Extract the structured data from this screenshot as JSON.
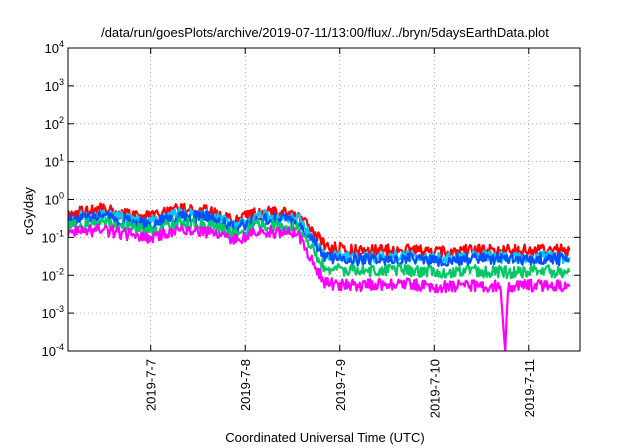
{
  "chart_data": {
    "type": "line",
    "title": "/data/run/goesPlots/archive/2019-07-11/13:00/flux/../bryn/5daysEarthData.plot",
    "xlabel": "Coordinated Universal Time (UTC)",
    "ylabel": "cGy/day",
    "yscale": "log",
    "ylim": [
      0.0001,
      10000
    ],
    "y_ticks": [
      {
        "value": 0.0001,
        "base": "10",
        "exp": "-4"
      },
      {
        "value": 0.001,
        "base": "10",
        "exp": "-3"
      },
      {
        "value": 0.01,
        "base": "10",
        "exp": "-2"
      },
      {
        "value": 0.1,
        "base": "10",
        "exp": "-1"
      },
      {
        "value": 1,
        "base": "10",
        "exp": "0"
      },
      {
        "value": 10,
        "base": "10",
        "exp": "1"
      },
      {
        "value": 100,
        "base": "10",
        "exp": "2"
      },
      {
        "value": 1000,
        "base": "10",
        "exp": "3"
      },
      {
        "value": 10000,
        "base": "10",
        "exp": "4"
      }
    ],
    "xlim": [
      "2019-07-06 03:00",
      "2019-07-11 13:00"
    ],
    "x_ticks": [
      "2019-7-7",
      "2019-7-8",
      "2019-7-9",
      "2019-7-10",
      "2019-7-11"
    ],
    "grid": true,
    "series": [
      {
        "color": "#ff0000",
        "values": [
          [
            0.0,
            0.33
          ],
          [
            0.25,
            0.45
          ],
          [
            0.5,
            0.58
          ],
          [
            0.75,
            0.4
          ],
          [
            1.0,
            0.34
          ],
          [
            1.3,
            0.55
          ],
          [
            1.6,
            0.5
          ],
          [
            1.9,
            0.26
          ],
          [
            2.15,
            0.5
          ],
          [
            2.4,
            0.43
          ],
          [
            2.55,
            0.42
          ],
          [
            2.85,
            0.058
          ],
          [
            3.2,
            0.043
          ],
          [
            3.6,
            0.048
          ],
          [
            4.0,
            0.041
          ],
          [
            4.4,
            0.045
          ],
          [
            4.8,
            0.044
          ],
          [
            5.2,
            0.047
          ],
          [
            5.43,
            0.045
          ]
        ]
      },
      {
        "color": "#00c8ff",
        "values": [
          [
            0.0,
            0.28
          ],
          [
            0.25,
            0.35
          ],
          [
            0.5,
            0.42
          ],
          [
            0.75,
            0.3
          ],
          [
            1.0,
            0.25
          ],
          [
            1.3,
            0.42
          ],
          [
            1.6,
            0.38
          ],
          [
            1.9,
            0.2
          ],
          [
            2.15,
            0.38
          ],
          [
            2.4,
            0.33
          ],
          [
            2.55,
            0.32
          ],
          [
            2.85,
            0.035
          ],
          [
            3.2,
            0.03
          ],
          [
            3.6,
            0.032
          ],
          [
            4.0,
            0.029
          ],
          [
            4.4,
            0.031
          ],
          [
            4.8,
            0.03
          ],
          [
            5.2,
            0.031
          ],
          [
            5.43,
            0.03
          ]
        ]
      },
      {
        "color": "#0050ff",
        "values": [
          [
            0.0,
            0.25
          ],
          [
            0.25,
            0.31
          ],
          [
            0.5,
            0.36
          ],
          [
            0.75,
            0.26
          ],
          [
            1.0,
            0.22
          ],
          [
            1.3,
            0.36
          ],
          [
            1.6,
            0.33
          ],
          [
            1.9,
            0.17
          ],
          [
            2.15,
            0.33
          ],
          [
            2.4,
            0.29
          ],
          [
            2.55,
            0.28
          ],
          [
            2.85,
            0.03
          ],
          [
            3.2,
            0.026
          ],
          [
            3.6,
            0.028
          ],
          [
            4.0,
            0.025
          ],
          [
            4.4,
            0.027
          ],
          [
            4.8,
            0.026
          ],
          [
            5.2,
            0.027
          ],
          [
            5.43,
            0.026
          ]
        ]
      },
      {
        "color": "#00c864",
        "values": [
          [
            0.0,
            0.18
          ],
          [
            0.25,
            0.21
          ],
          [
            0.5,
            0.24
          ],
          [
            0.75,
            0.18
          ],
          [
            1.0,
            0.15
          ],
          [
            1.3,
            0.24
          ],
          [
            1.6,
            0.22
          ],
          [
            1.9,
            0.12
          ],
          [
            2.15,
            0.22
          ],
          [
            2.4,
            0.2
          ],
          [
            2.55,
            0.19
          ],
          [
            2.85,
            0.015
          ],
          [
            3.2,
            0.013
          ],
          [
            3.6,
            0.014
          ],
          [
            4.0,
            0.012
          ],
          [
            4.4,
            0.013
          ],
          [
            4.8,
            0.012
          ],
          [
            5.2,
            0.013
          ],
          [
            5.43,
            0.012
          ]
        ]
      },
      {
        "color": "#ff00ff",
        "values": [
          [
            0.0,
            0.12
          ],
          [
            0.25,
            0.14
          ],
          [
            0.5,
            0.16
          ],
          [
            0.75,
            0.12
          ],
          [
            1.0,
            0.1
          ],
          [
            1.3,
            0.15
          ],
          [
            1.6,
            0.14
          ],
          [
            1.9,
            0.08
          ],
          [
            2.15,
            0.15
          ],
          [
            2.4,
            0.13
          ],
          [
            2.55,
            0.13
          ],
          [
            2.85,
            0.006
          ],
          [
            3.2,
            0.0055
          ],
          [
            3.6,
            0.006
          ],
          [
            4.0,
            0.005
          ],
          [
            4.4,
            0.0055
          ],
          [
            4.7,
            0.005
          ],
          [
            4.75,
            0.0001
          ],
          [
            4.78,
            0.005
          ],
          [
            5.2,
            0.0055
          ],
          [
            5.43,
            0.005
          ]
        ]
      }
    ]
  }
}
